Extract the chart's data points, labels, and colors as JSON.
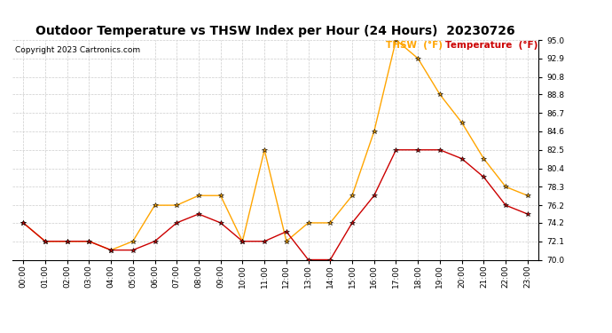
{
  "title": "Outdoor Temperature vs THSW Index per Hour (24 Hours)  20230726",
  "copyright": "Copyright 2023 Cartronics.com",
  "hours": [
    "00:00",
    "01:00",
    "02:00",
    "03:00",
    "04:00",
    "05:00",
    "06:00",
    "07:00",
    "08:00",
    "09:00",
    "10:00",
    "11:00",
    "12:00",
    "13:00",
    "14:00",
    "15:00",
    "16:00",
    "17:00",
    "18:00",
    "19:00",
    "20:00",
    "21:00",
    "22:00",
    "23:00"
  ],
  "temperature": [
    74.2,
    72.1,
    72.1,
    72.1,
    71.1,
    71.1,
    72.1,
    74.2,
    75.2,
    74.2,
    72.1,
    72.1,
    73.2,
    70.0,
    70.0,
    74.2,
    77.3,
    82.5,
    82.5,
    82.5,
    81.5,
    79.4,
    76.2,
    75.2
  ],
  "thsw": [
    74.2,
    72.1,
    72.1,
    72.1,
    71.1,
    72.1,
    76.2,
    76.2,
    77.3,
    77.3,
    72.1,
    82.5,
    72.1,
    74.2,
    74.2,
    77.3,
    84.6,
    95.0,
    92.9,
    88.8,
    85.6,
    81.5,
    78.3,
    77.3
  ],
  "temp_color": "#cc0000",
  "thsw_color": "#ffa500",
  "ylim_min": 70.0,
  "ylim_max": 95.0,
  "yticks": [
    70.0,
    72.1,
    74.2,
    76.2,
    78.3,
    80.4,
    82.5,
    84.6,
    86.7,
    88.8,
    90.8,
    92.9,
    95.0
  ],
  "bg_color": "#ffffff",
  "grid_color": "#cccccc",
  "title_fontsize": 10,
  "copyright_fontsize": 6.5,
  "tick_fontsize": 6.5,
  "legend_thsw": "THSW  (°F)",
  "legend_temp": "Temperature  (°F)"
}
